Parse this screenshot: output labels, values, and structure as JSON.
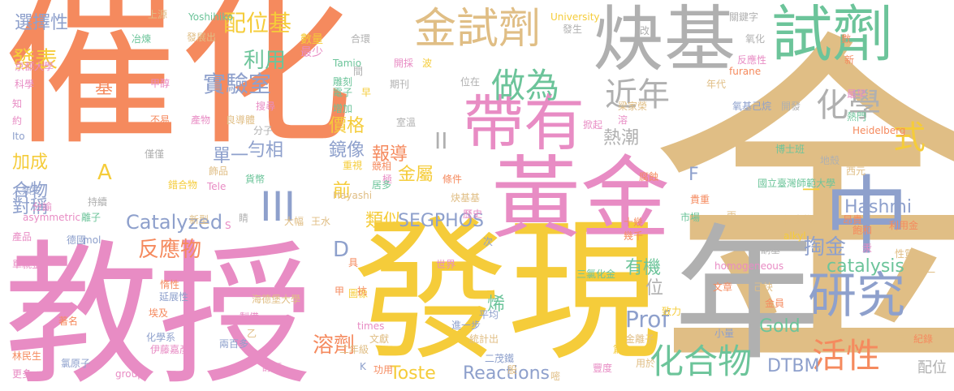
{
  "palette": {
    "orange": "#f58a5e",
    "tan": "#e0be85",
    "green": "#6cc49a",
    "blue": "#8ea0cc",
    "pink": "#e88cc4",
    "yellow": "#f5cc3a",
    "gray": "#b0b0b0",
    "lime": "#a8d65c",
    "background": "#ffffff"
  },
  "words": [
    {
      "text": "催化"
    },
    {
      "text": "金"
    },
    {
      "text": "教授"
    },
    {
      "text": "發現"
    },
    {
      "text": "黃金"
    },
    {
      "text": "炔基"
    },
    {
      "text": "試劑"
    },
    {
      "text": "年"
    },
    {
      "text": "帶有"
    },
    {
      "text": "中"
    },
    {
      "text": "金試劑"
    },
    {
      "text": "研究"
    },
    {
      "text": "做為"
    },
    {
      "text": "近年"
    },
    {
      "text": "化學"
    },
    {
      "text": "化合物"
    },
    {
      "text": "活性"
    },
    {
      "text": "式"
    },
    {
      "text": "配位基"
    },
    {
      "text": "實驗室"
    },
    {
      "text": "發表"
    },
    {
      "text": "選擇性"
    },
    {
      "text": "利用"
    },
    {
      "text": "III"
    },
    {
      "text": "II"
    },
    {
      "text": "Catalyzed"
    },
    {
      "text": "反應物"
    },
    {
      "text": "Reactions"
    },
    {
      "text": "Toste"
    },
    {
      "text": "溶劑"
    },
    {
      "text": "SEGPHOS"
    },
    {
      "text": "類似"
    },
    {
      "text": "掏金"
    },
    {
      "text": "catalysis"
    },
    {
      "text": "Hashmi"
    },
    {
      "text": "Prof"
    },
    {
      "text": "Gold"
    },
    {
      "text": "DTBM"
    },
    {
      "text": "熱潮"
    },
    {
      "text": "價格"
    },
    {
      "text": "報導"
    },
    {
      "text": "鏡像"
    },
    {
      "text": "金屬"
    },
    {
      "text": "單一"
    },
    {
      "text": "勻相"
    },
    {
      "text": "加成"
    },
    {
      "text": "合物"
    },
    {
      "text": "對稱"
    },
    {
      "text": "有機"
    },
    {
      "text": "烯"
    },
    {
      "text": "位"
    },
    {
      "text": "前"
    },
    {
      "text": "D"
    },
    {
      "text": "A"
    },
    {
      "text": "F"
    },
    {
      "text": "一"
    },
    {
      "text": "基"
    },
    {
      "text": "配位"
    },
    {
      "text": "數量"
    },
    {
      "text": "最少"
    },
    {
      "text": "上源"
    },
    {
      "text": "冶煉"
    },
    {
      "text": "發展出"
    },
    {
      "text": "Yoshihiko"
    },
    {
      "text": "京都大學"
    },
    {
      "text": "科學"
    },
    {
      "text": "甲醇"
    },
    {
      "text": "Tamio"
    },
    {
      "text": "雕刻"
    },
    {
      "text": "電子"
    },
    {
      "text": "早"
    },
    {
      "text": "期刊"
    },
    {
      "text": "開採"
    },
    {
      "text": "波"
    },
    {
      "text": "間"
    },
    {
      "text": "合環"
    },
    {
      "text": "University"
    },
    {
      "text": "發生"
    },
    {
      "text": "改"
    },
    {
      "text": "氧化"
    },
    {
      "text": "關鍵字"
    },
    {
      "text": "數"
    },
    {
      "text": "新"
    },
    {
      "text": "furane"
    },
    {
      "text": "年代"
    },
    {
      "text": "反應性"
    },
    {
      "text": "氧基己烷"
    },
    {
      "text": "最早"
    },
    {
      "text": "熱門"
    },
    {
      "text": "Heidelberg"
    },
    {
      "text": "開發"
    },
    {
      "text": "博士班"
    },
    {
      "text": "地殼"
    },
    {
      "text": "西元"
    },
    {
      "text": "國立臺灣師範大學"
    },
    {
      "text": "貴重"
    },
    {
      "text": "腐蝕"
    },
    {
      "text": "市場"
    },
    {
      "text": "衍生物"
    },
    {
      "text": "員環"
    },
    {
      "text": "昂貴"
    },
    {
      "text": "alkyl"
    },
    {
      "text": "飽和"
    },
    {
      "text": "利用金"
    },
    {
      "text": "酮基"
    },
    {
      "text": "兩"
    },
    {
      "text": "十幾"
    },
    {
      "text": "幾千"
    },
    {
      "text": "汞"
    },
    {
      "text": "性質"
    },
    {
      "text": "第一"
    },
    {
      "text": "homogeneous"
    },
    {
      "text": "文章"
    },
    {
      "text": "己炔"
    },
    {
      "text": "金員"
    },
    {
      "text": "致力"
    },
    {
      "text": "小量"
    },
    {
      "text": "金離子"
    },
    {
      "text": "五"
    },
    {
      "text": "紀錄"
    },
    {
      "text": "用於"
    },
    {
      "text": "篇"
    },
    {
      "text": "豐度"
    },
    {
      "text": "嘧"
    },
    {
      "text": "股"
    },
    {
      "text": "統計出"
    },
    {
      "text": "二茂鐵"
    },
    {
      "text": "進一步"
    },
    {
      "text": "平均"
    },
    {
      "text": "文獻"
    },
    {
      "text": "三氯化金"
    },
    {
      "text": "世界"
    },
    {
      "text": "次"
    },
    {
      "text": "圖像"
    },
    {
      "text": "甲"
    },
    {
      "text": "抗"
    },
    {
      "text": "具"
    },
    {
      "text": "times"
    },
    {
      "text": "二年級"
    },
    {
      "text": "功用"
    },
    {
      "text": "K"
    },
    {
      "text": "海德堡大學"
    },
    {
      "text": "製備"
    },
    {
      "text": "乙"
    },
    {
      "text": "兩百多"
    },
    {
      "text": "化學系"
    },
    {
      "text": "伊藤嘉彥"
    },
    {
      "text": "氯原子"
    },
    {
      "text": "醇類"
    },
    {
      "text": "group"
    },
    {
      "text": "更多"
    },
    {
      "text": "林民生"
    },
    {
      "text": "著名"
    },
    {
      "text": "埃及"
    },
    {
      "text": "延展性"
    },
    {
      "text": "惰性"
    },
    {
      "text": "單就金"
    },
    {
      "text": "德國"
    },
    {
      "text": "mol"
    },
    {
      "text": "產品"
    },
    {
      "text": "asymmetric"
    },
    {
      "text": "持續"
    },
    {
      "text": "人類史"
    },
    {
      "text": "分諭"
    },
    {
      "text": "離子"
    },
    {
      "text": "Ito"
    },
    {
      "text": "約"
    },
    {
      "text": "知"
    },
    {
      "text": "錯合物"
    },
    {
      "text": "Tele"
    },
    {
      "text": "僅僅"
    },
    {
      "text": "飾品"
    },
    {
      "text": "貨幣"
    },
    {
      "text": "Hayashi"
    },
    {
      "text": "產物"
    },
    {
      "text": "不易"
    },
    {
      "text": "良導體"
    },
    {
      "text": "分子"
    },
    {
      "text": "搜尋"
    },
    {
      "text": "增加"
    },
    {
      "text": "極"
    },
    {
      "text": "室溫"
    },
    {
      "text": "居多"
    },
    {
      "text": "重視"
    },
    {
      "text": "競相"
    },
    {
      "text": "條件"
    },
    {
      "text": "炔基基"
    },
    {
      "text": "歷史"
    },
    {
      "text": "大幅"
    },
    {
      "text": "王水"
    },
    {
      "text": "S"
    },
    {
      "text": "新型"
    },
    {
      "text": "睛"
    },
    {
      "text": "位在"
    },
    {
      "text": "梁家榮"
    },
    {
      "text": "掀起"
    },
    {
      "text": "溶"
    }
  ]
}
